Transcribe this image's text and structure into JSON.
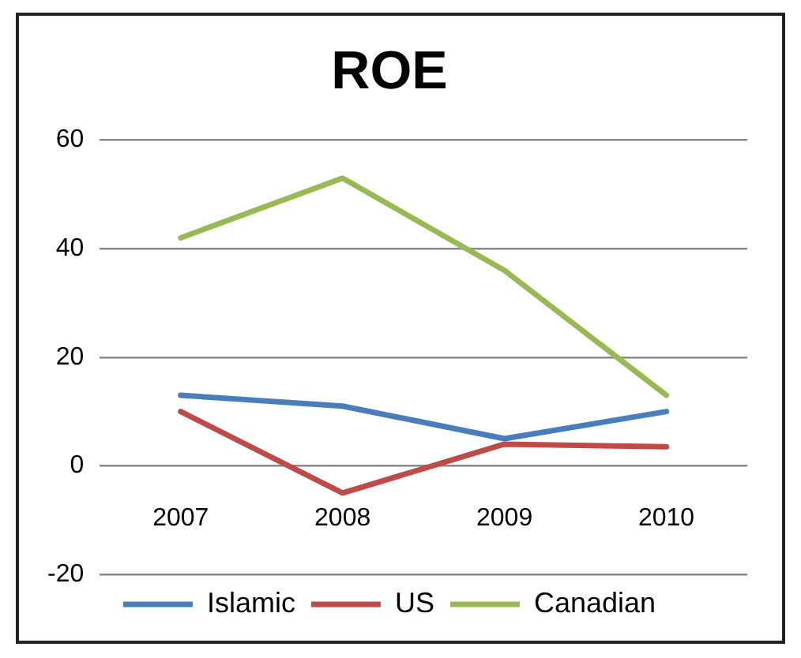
{
  "chart_data": {
    "type": "line",
    "title": "ROE",
    "categories": [
      "2007",
      "2008",
      "2009",
      "2010"
    ],
    "series": [
      {
        "name": "Islamic",
        "color": "#4a7ebb",
        "values": [
          13,
          11,
          5,
          10
        ]
      },
      {
        "name": "US",
        "color": "#be4b48",
        "values": [
          10,
          -5,
          4,
          3.5
        ]
      },
      {
        "name": "Canadian",
        "color": "#98b954",
        "values": [
          42,
          53,
          36,
          13
        ]
      }
    ],
    "ylim": [
      -20,
      60
    ],
    "yticks": [
      -20,
      0,
      20,
      40,
      60
    ],
    "grid": "y",
    "legend": "bottom",
    "marker": "none",
    "line_style": "solid"
  }
}
